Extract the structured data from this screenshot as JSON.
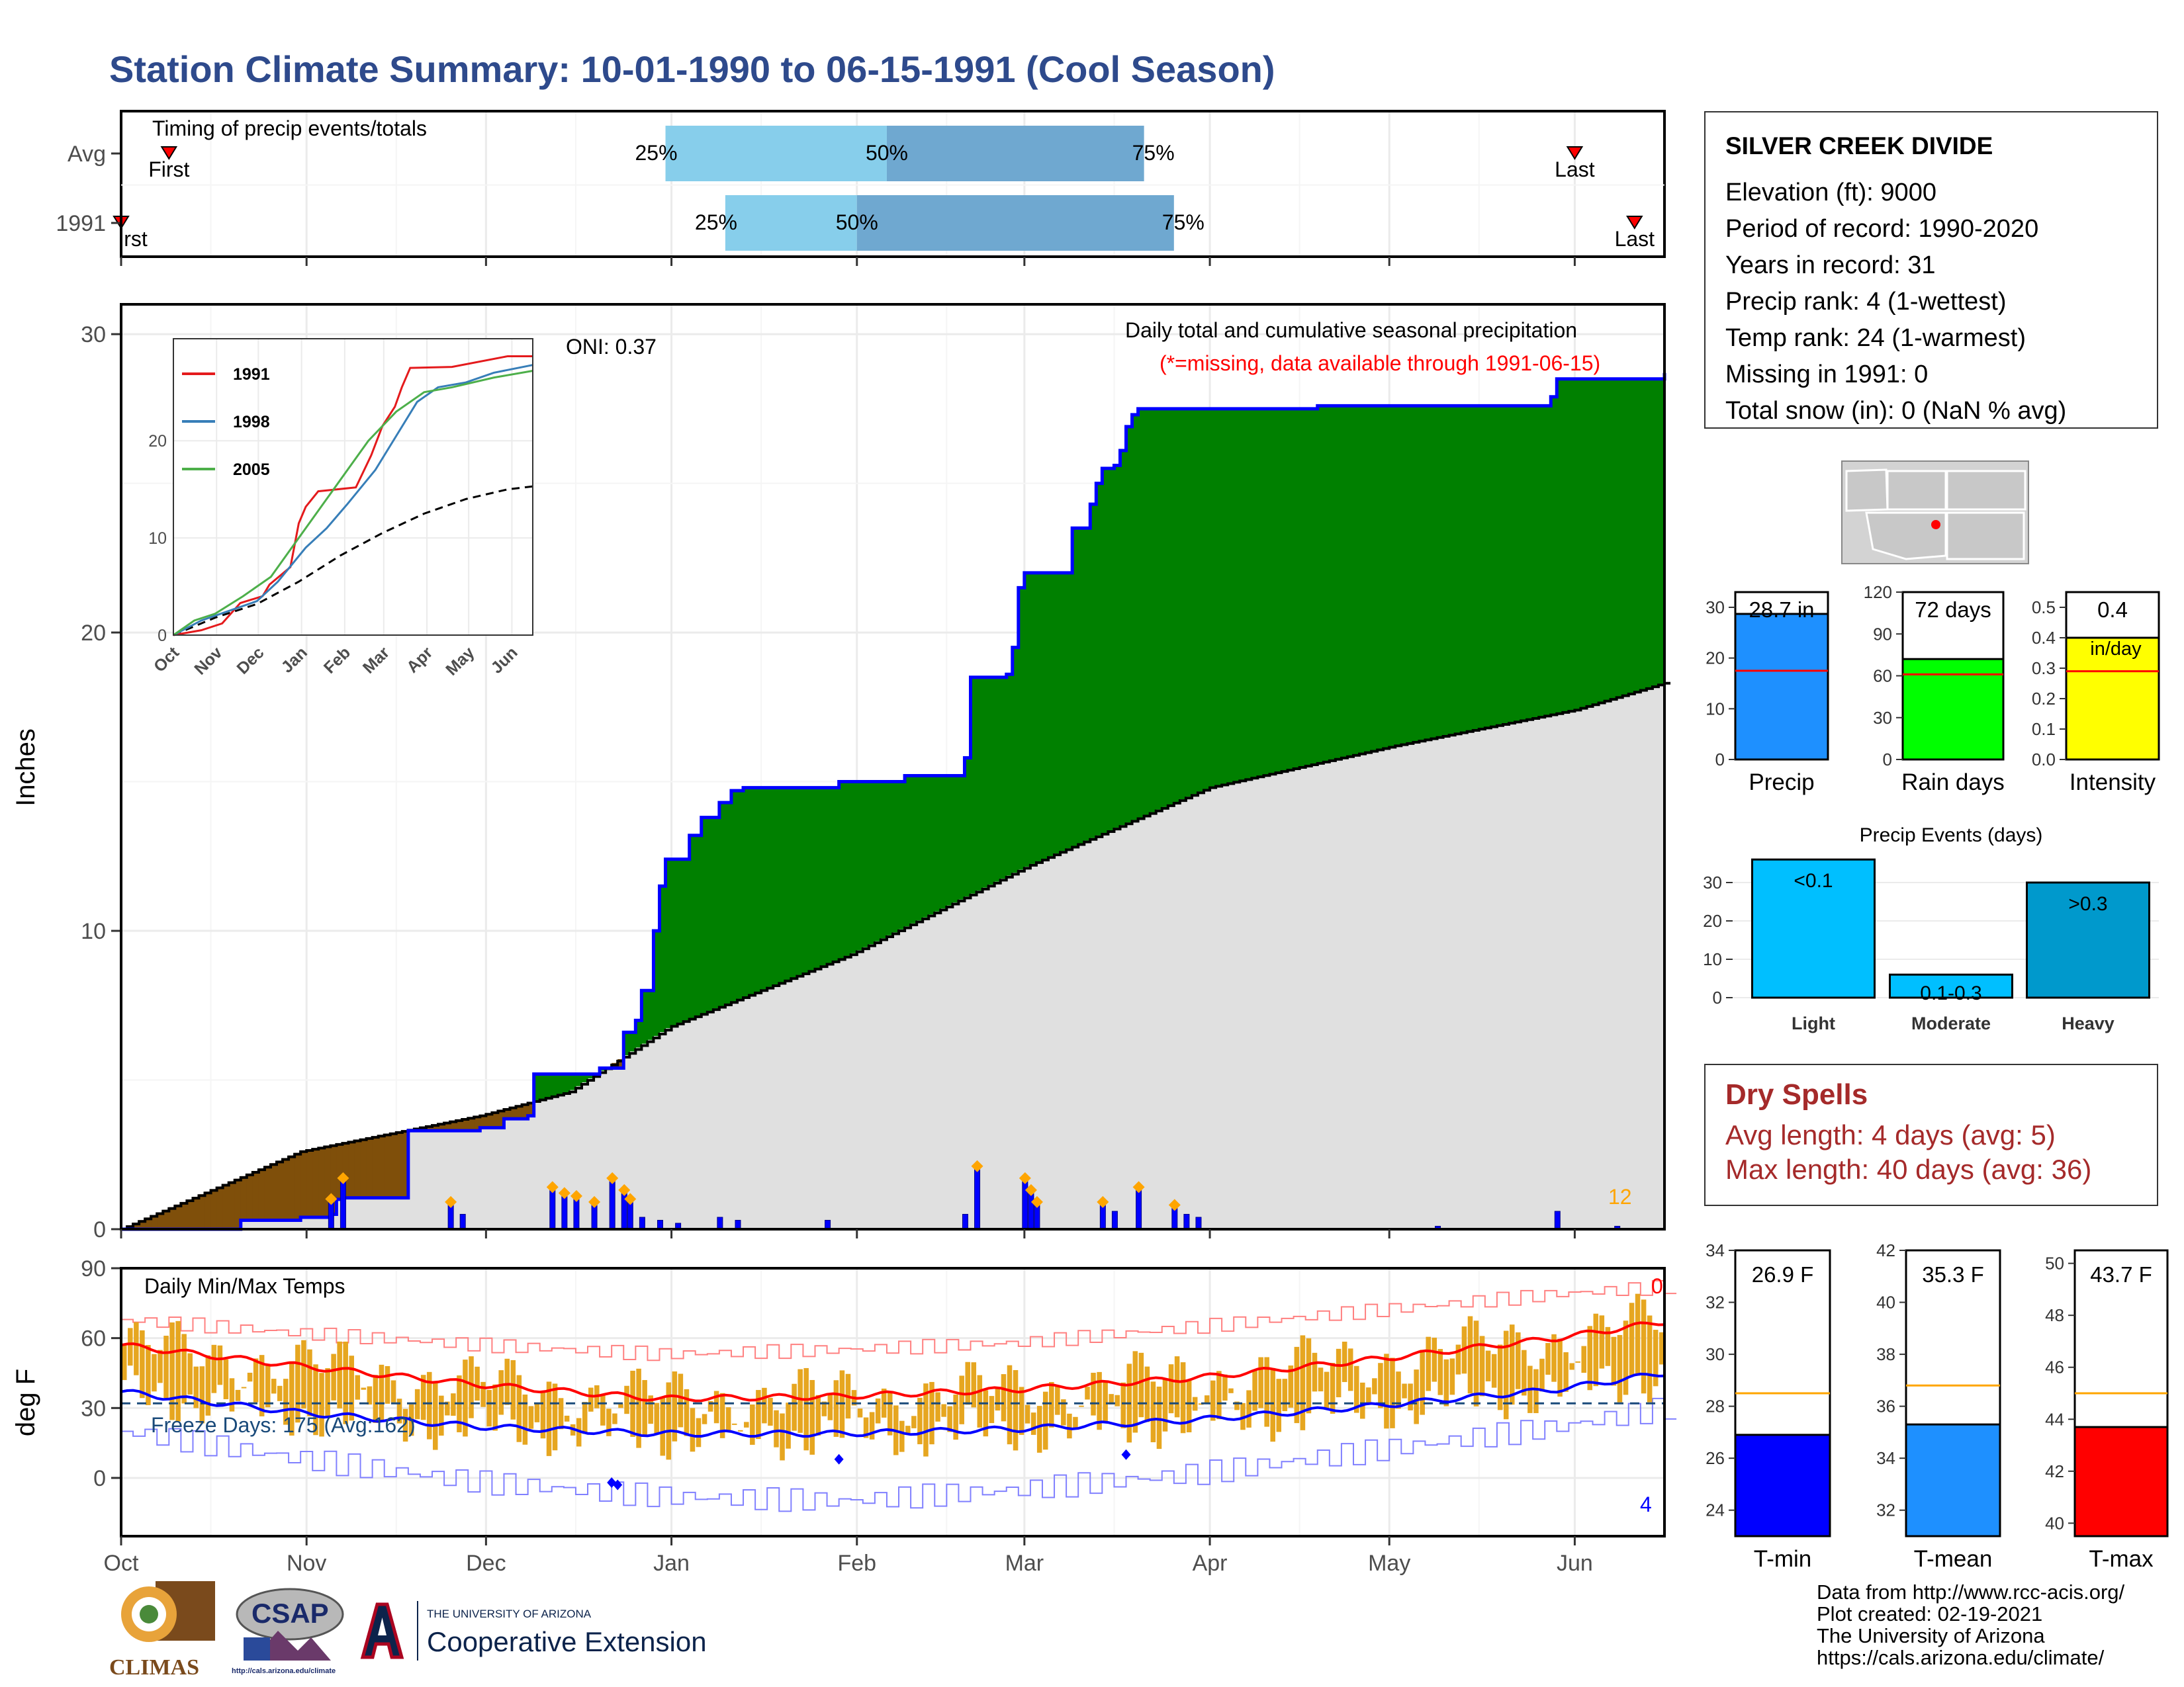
{
  "title": "Station Climate Summary: 10-01-1990 to 06-15-1991 (Cool Season)",
  "station": {
    "name": "SILVER CREEK DIVIDE",
    "lines": [
      "Elevation (ft): 9000",
      "Period of record: 1990-2020",
      "Years in record: 31",
      "Precip rank: 4 (1-wettest)",
      "Temp rank: 24 (1-warmest)",
      "Missing in 1991: 0",
      "Total snow (in): 0 (NaN % avg)"
    ]
  },
  "dry_spells": {
    "heading": "Dry Spells",
    "avg_length": "Avg length: 4 days (avg: 5)",
    "max_length": "Max length: 40 days (avg: 36)"
  },
  "footer": {
    "lines": [
      "Data from http://www.rcc-acis.org/",
      "Plot created: 02-19-2021",
      "The University of Arizona",
      "https://cals.arizona.edu/climate/"
    ]
  },
  "logos": {
    "climas": "CLIMAS",
    "csap": "CSAP",
    "csap_url": "http://cals.arizona.edu/climate",
    "ua_small": "THE UNIVERSITY OF ARIZONA",
    "ua_big": "Cooperative Extension"
  },
  "colors": {
    "title": "#2e4a8c",
    "green": "#008000",
    "brown": "#7f4f0a",
    "gray_fill": "#e0e0e0",
    "blue_line": "#0000ff",
    "orange": "#ffa500",
    "red": "#ff0000",
    "light_blue": "#87ceeb",
    "steel_blue": "#6fa8d0",
    "dark_red": "#a52a2a"
  },
  "chart_data": [
    {
      "id": "timing",
      "type": "bar",
      "title": "Timing of precip events/totals",
      "rows": [
        {
          "label": "Avg",
          "first": "Oct 9",
          "p25": "Dec 31",
          "p50": "Feb 6",
          "p75": "Mar 21",
          "last": "Jun 1"
        },
        {
          "label": "1991",
          "first": "Oct 1",
          "p25": "Jan 10",
          "p50": "Feb 1",
          "p75": "Mar 26",
          "last": "Jun 11"
        }
      ],
      "labels": {
        "first": "First",
        "last": "Last",
        "p25": "25%",
        "p50": "50%",
        "p75": "75%",
        "first_clipped": "rst"
      }
    },
    {
      "id": "precip",
      "type": "area",
      "title": "Daily total and cumulative seasonal precipitation",
      "subtitle": "(*=missing, data available through 1991-06-15)",
      "ylabel": "Inches",
      "ylim": [
        0,
        31
      ],
      "yticks": [
        0,
        10,
        20,
        30
      ],
      "oni": "ONI: 0.37",
      "corner_label": "12",
      "x_months": [
        "Oct",
        "Nov",
        "Dec",
        "Jan",
        "Feb",
        "Mar",
        "Apr",
        "May",
        "Jun"
      ],
      "cumulative_1991": [
        [
          0,
          0
        ],
        [
          18,
          0
        ],
        [
          20,
          0.3
        ],
        [
          30,
          0.4
        ],
        [
          35,
          0.5
        ],
        [
          36,
          1
        ],
        [
          37,
          1.05
        ],
        [
          46,
          1.05
        ],
        [
          48,
          3.3
        ],
        [
          60,
          3.4
        ],
        [
          63,
          3.4
        ],
        [
          64,
          3.7
        ],
        [
          68,
          3.8
        ],
        [
          69,
          5.2
        ],
        [
          80,
          5.4
        ],
        [
          83,
          5.4
        ],
        [
          84,
          6.6
        ],
        [
          86,
          7
        ],
        [
          87,
          8
        ],
        [
          89,
          10
        ],
        [
          90,
          11.5
        ],
        [
          91,
          12.4
        ],
        [
          95,
          13.2
        ],
        [
          97,
          13.8
        ],
        [
          100,
          14.3
        ],
        [
          102,
          14.7
        ],
        [
          104,
          14.8
        ],
        [
          120,
          15.0
        ],
        [
          131,
          15.2
        ],
        [
          140,
          15.2
        ],
        [
          141,
          15.8
        ],
        [
          142,
          18.5
        ],
        [
          148,
          18.6
        ],
        [
          149,
          19.5
        ],
        [
          150,
          21.5
        ],
        [
          151,
          22
        ],
        [
          158,
          22
        ],
        [
          159,
          23.5
        ],
        [
          162,
          24.3
        ],
        [
          163,
          25
        ],
        [
          164,
          25.5
        ],
        [
          166,
          25.6
        ],
        [
          167,
          26.1
        ],
        [
          168,
          26.9
        ],
        [
          169,
          27.3
        ],
        [
          170,
          27.5
        ],
        [
          200,
          27.6
        ],
        [
          239,
          27.9
        ],
        [
          240,
          28.5
        ],
        [
          258,
          28.7
        ]
      ],
      "normal_cumulative": [
        [
          0,
          0
        ],
        [
          30,
          2.6
        ],
        [
          60,
          3.8
        ],
        [
          75,
          4.6
        ],
        [
          92,
          6.8
        ],
        [
          122,
          9.2
        ],
        [
          152,
          12.2
        ],
        [
          182,
          14.8
        ],
        [
          213,
          16.2
        ],
        [
          243,
          17.4
        ],
        [
          258,
          18.3
        ]
      ],
      "daily_1991": [
        [
          35,
          0.9
        ],
        [
          37,
          1.6
        ],
        [
          55,
          0.8
        ],
        [
          57,
          0.5
        ],
        [
          72,
          1.3
        ],
        [
          74,
          1.1
        ],
        [
          76,
          1.0
        ],
        [
          79,
          0.8
        ],
        [
          82,
          1.6
        ],
        [
          84,
          1.2
        ],
        [
          85,
          0.9
        ],
        [
          87,
          0.4
        ],
        [
          90,
          0.3
        ],
        [
          93,
          0.2
        ],
        [
          100,
          0.4
        ],
        [
          103,
          0.3
        ],
        [
          118,
          0.3
        ],
        [
          141,
          0.5
        ],
        [
          143,
          2.0
        ],
        [
          151,
          1.6
        ],
        [
          152,
          1.2
        ],
        [
          153,
          0.8
        ],
        [
          164,
          0.8
        ],
        [
          166,
          0.6
        ],
        [
          170,
          1.3
        ],
        [
          176,
          0.7
        ],
        [
          178,
          0.5
        ],
        [
          180,
          0.4
        ],
        [
          220,
          0.1
        ],
        [
          240,
          0.6
        ],
        [
          250,
          0.1
        ]
      ],
      "inset": {
        "ylim": [
          0,
          30.5
        ],
        "yticks": [
          0,
          10,
          20
        ],
        "x_months": [
          "Oct",
          "Nov",
          "Dec",
          "Jan",
          "Feb",
          "Mar",
          "Apr",
          "May",
          "Jun"
        ],
        "series": [
          {
            "name": "1991",
            "color": "#e41a1c",
            "values": [
              [
                0,
                0
              ],
              [
                20,
                0.5
              ],
              [
                35,
                1.2
              ],
              [
                48,
                3.3
              ],
              [
                64,
                4
              ],
              [
                69,
                5.2
              ],
              [
                84,
                7
              ],
              [
                90,
                11.5
              ],
              [
                95,
                13.2
              ],
              [
                104,
                14.8
              ],
              [
                131,
                15.2
              ],
              [
                142,
                18.5
              ],
              [
                150,
                21.5
              ],
              [
                159,
                23.5
              ],
              [
                164,
                25.5
              ],
              [
                170,
                27.5
              ],
              [
                200,
                27.6
              ],
              [
                240,
                28.7
              ],
              [
                258,
                28.7
              ]
            ]
          },
          {
            "name": "1998",
            "color": "#377eb8",
            "values": [
              [
                0,
                0
              ],
              [
                20,
                1.5
              ],
              [
                40,
                2.5
              ],
              [
                60,
                3.5
              ],
              [
                75,
                5.5
              ],
              [
                95,
                9
              ],
              [
                110,
                11
              ],
              [
                125,
                13.5
              ],
              [
                145,
                17
              ],
              [
                160,
                20.5
              ],
              [
                175,
                24
              ],
              [
                190,
                25.5
              ],
              [
                210,
                26
              ],
              [
                230,
                27
              ],
              [
                258,
                27.8
              ]
            ]
          },
          {
            "name": "2005",
            "color": "#4daf4a",
            "values": [
              [
                0,
                0
              ],
              [
                15,
                1.5
              ],
              [
                30,
                2.2
              ],
              [
                50,
                4
              ],
              [
                70,
                6
              ],
              [
                85,
                9
              ],
              [
                100,
                12
              ],
              [
                110,
                14
              ],
              [
                125,
                17
              ],
              [
                140,
                20
              ],
              [
                160,
                23
              ],
              [
                180,
                25
              ],
              [
                200,
                25.5
              ],
              [
                230,
                26.5
              ],
              [
                258,
                27.2
              ]
            ]
          }
        ],
        "average": [
          [
            0,
            0
          ],
          [
            30,
            1.8
          ],
          [
            60,
            3.2
          ],
          [
            90,
            5.5
          ],
          [
            120,
            8.2
          ],
          [
            150,
            10.5
          ],
          [
            180,
            12.5
          ],
          [
            210,
            14
          ],
          [
            240,
            15
          ],
          [
            258,
            15.3
          ]
        ]
      }
    },
    {
      "id": "temps",
      "type": "line",
      "title": "Daily Min/Max Temps",
      "ylabel": "deg F",
      "ylim": [
        -25,
        90
      ],
      "yticks": [
        0,
        30,
        60,
        90
      ],
      "freeze_label": "Freeze Days: 175 (Avg:162)",
      "top_right_count": "0",
      "bottom_right_count": "4",
      "x_months": [
        "Oct",
        "Nov",
        "Dec",
        "Jan",
        "Feb",
        "Mar",
        "Apr",
        "May",
        "Jun"
      ],
      "avg_max": [
        [
          0,
          57
        ],
        [
          30,
          48
        ],
        [
          60,
          40
        ],
        [
          90,
          34
        ],
        [
          120,
          35
        ],
        [
          150,
          38
        ],
        [
          180,
          43
        ],
        [
          210,
          51
        ],
        [
          240,
          60
        ],
        [
          258,
          67
        ]
      ],
      "avg_min": [
        [
          0,
          37
        ],
        [
          30,
          28
        ],
        [
          60,
          22
        ],
        [
          90,
          19
        ],
        [
          120,
          19
        ],
        [
          150,
          21
        ],
        [
          180,
          25
        ],
        [
          210,
          31
        ],
        [
          240,
          38
        ],
        [
          258,
          45
        ]
      ],
      "record_max": [
        [
          0,
          68
        ],
        [
          30,
          62
        ],
        [
          60,
          57
        ],
        [
          90,
          53
        ],
        [
          120,
          55
        ],
        [
          150,
          58
        ],
        [
          180,
          65
        ],
        [
          210,
          72
        ],
        [
          240,
          79
        ],
        [
          258,
          82
        ]
      ],
      "record_min": [
        [
          0,
          20
        ],
        [
          30,
          8
        ],
        [
          60,
          -2
        ],
        [
          90,
          -8
        ],
        [
          120,
          -10
        ],
        [
          150,
          -5
        ],
        [
          180,
          2
        ],
        [
          210,
          12
        ],
        [
          240,
          22
        ],
        [
          258,
          30
        ]
      ],
      "freeze_line": 32,
      "points_min": [
        [
          82,
          -2
        ],
        [
          83,
          -3
        ],
        [
          120,
          8
        ],
        [
          168,
          10
        ]
      ]
    },
    {
      "id": "summary_bars",
      "type": "bar",
      "panels": [
        {
          "label": "Precip",
          "value": 28.7,
          "value_text": "28.7 in",
          "avg": 17.5,
          "ylim": [
            0,
            33
          ],
          "yticks": [
            0,
            10,
            20,
            30
          ],
          "color": "#1e90ff"
        },
        {
          "label": "Rain days",
          "value": 72,
          "value_text": "72 days",
          "avg": 61,
          "ylim": [
            0,
            120
          ],
          "yticks": [
            0,
            30,
            60,
            90,
            120
          ],
          "color": "#00ff00"
        },
        {
          "label": "Intensity",
          "value": 0.4,
          "value_text": "0.4",
          "unit": "in/day",
          "avg": 0.29,
          "ylim": [
            0,
            0.55
          ],
          "yticks": [
            0.0,
            0.1,
            0.2,
            0.3,
            0.4,
            0.5
          ],
          "color": "#ffff00"
        }
      ]
    },
    {
      "id": "precip_events",
      "type": "bar",
      "title": "Precip Events (days)",
      "categories": [
        "Light",
        "Moderate",
        "Heavy"
      ],
      "bar_labels": [
        "<0.1",
        "0.1-0.3",
        ">0.3"
      ],
      "values": [
        36,
        6,
        30
      ],
      "ylim": [
        0,
        35
      ],
      "yticks": [
        0,
        10,
        20,
        30
      ],
      "colors": [
        "#00bfff",
        "#00bfff",
        "#0099cc"
      ]
    },
    {
      "id": "temp_bars",
      "type": "bar",
      "panels": [
        {
          "label": "T-min",
          "value": 26.9,
          "value_text": "26.9 F",
          "avg": 28.5,
          "ylim": [
            23,
            34
          ],
          "yticks": [
            24,
            26,
            28,
            30,
            32,
            34
          ],
          "color": "#0000ff"
        },
        {
          "label": "T-mean",
          "value": 35.3,
          "value_text": "35.3 F",
          "avg": 36.8,
          "ylim": [
            31,
            42
          ],
          "yticks": [
            32,
            34,
            36,
            38,
            40,
            42
          ],
          "color": "#1e90ff"
        },
        {
          "label": "T-max",
          "value": 43.7,
          "value_text": "43.7 F",
          "avg": 45.0,
          "ylim": [
            39.5,
            50.5
          ],
          "yticks": [
            40,
            42,
            44,
            46,
            48,
            50
          ],
          "color": "#ff0000"
        }
      ]
    }
  ]
}
